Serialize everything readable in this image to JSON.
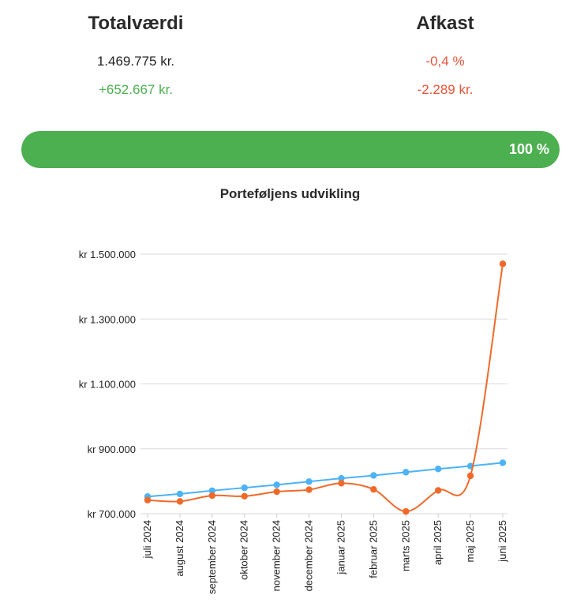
{
  "summary": {
    "total": {
      "title": "Totalværdi",
      "value": "1.469.775 kr.",
      "change": "+652.667 kr."
    },
    "return": {
      "title": "Afkast",
      "percent": "-0,4 %",
      "amount": "-2.289 kr."
    }
  },
  "progress": {
    "label": "100 %",
    "value": 100
  },
  "colors": {
    "positive": "#4caf50",
    "negative": "#e8553a",
    "series_blue": "#4db3f5",
    "series_orange": "#ef6a2a"
  },
  "chart_data": {
    "type": "line",
    "title": "Porteføljens udvikling",
    "categories": [
      "juli 2024",
      "august 2024",
      "september 2024",
      "oktober 2024",
      "november 2024",
      "december 2024",
      "januar 2025",
      "februar 2025",
      "marts 2025",
      "april 2025",
      "maj 2025",
      "juni 2025"
    ],
    "series": [
      {
        "color": "#4db3f5",
        "values": [
          753000,
          761000,
          771000,
          780000,
          789000,
          799000,
          809000,
          818000,
          828000,
          838000,
          847000,
          857000
        ]
      },
      {
        "color": "#ef6a2a",
        "values": [
          742000,
          738000,
          756000,
          754000,
          768000,
          774000,
          794000,
          775000,
          707000,
          772000,
          817000,
          1470000
        ]
      }
    ],
    "yticks": [
      "kr 700.000",
      "kr 900.000",
      "kr 1.100.000",
      "kr 1.300.000",
      "kr 1.500.000"
    ],
    "ylim": [
      700000,
      1500000
    ],
    "grid": true,
    "legend": "none"
  }
}
